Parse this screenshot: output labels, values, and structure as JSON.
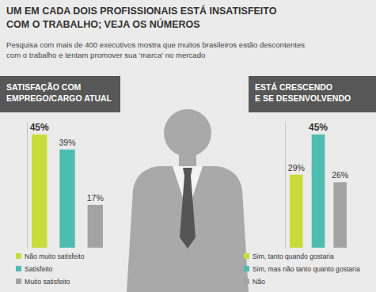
{
  "header": {
    "title": "UM EM CADA DOIS PROFISSIONAIS ESTÁ INSATISFEITO\nCOM O TRABALHO; VEJA OS NÚMEROS",
    "subtitle": "Pesquisa com mais de 400 executivos mostra que muitos brasileiros estão descontentes\ncom o trabalho e tentam promover sua ‘marca’ no mercado"
  },
  "chart_data": [
    {
      "type": "bar",
      "title": "SATISFAÇÃO COM\nEMPREGO/CARGO ATUAL",
      "categories": [
        "Não muito satisfeito",
        "Satisfeito",
        "Muito satisfeito"
      ],
      "values": [
        45,
        39,
        17
      ],
      "value_labels": [
        "45%",
        "39%",
        "17%"
      ],
      "colors": [
        "#c9dc3a",
        "#4fbcb0",
        "#a3a3a3"
      ],
      "ylim": [
        0,
        50
      ],
      "tick_labels": false,
      "data_labels": true,
      "legend": "bottom"
    },
    {
      "type": "bar",
      "title": "ESTÁ CRESCENDO\nE SE DESENVOLVENDO",
      "categories": [
        "Sim, tanto quando gostaria",
        "Sim, mas não tanto quanto gostaria",
        "Não"
      ],
      "values": [
        29,
        45,
        26
      ],
      "value_labels": [
        "29%",
        "45%",
        "26%"
      ],
      "colors": [
        "#c9dc3a",
        "#4fbcb0",
        "#a3a3a3"
      ],
      "ylim": [
        0,
        50
      ],
      "tick_labels": false,
      "data_labels": true,
      "legend": "bottom"
    }
  ]
}
